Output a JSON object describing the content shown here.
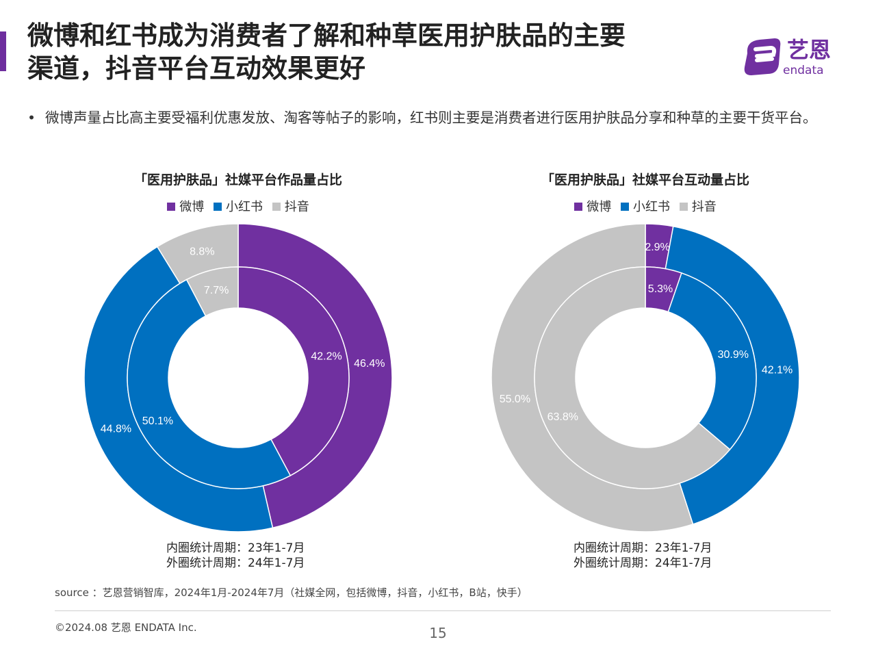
{
  "title_lines": [
    "微博和红书成为消费者了解和种草医用护肤品的主要",
    "渠道，抖音平台互动效果更好"
  ],
  "logo": {
    "cn": "艺恩",
    "en": "endata"
  },
  "bullet": "微博声量占比高主要受福利优惠发放、淘客等帖子的影响，红书则主要是消费者进行医用护肤品分享和种草的主要干货平台。",
  "colors": {
    "weibo": "#7030a0",
    "xiaohongshu": "#0070c0",
    "douyin": "#c4c4c4",
    "accent": "#6e2e9e"
  },
  "chart_data": [
    {
      "type": "donut",
      "title": "「医用护肤品」社媒平台作品量占比",
      "legend": [
        "微博",
        "小红书",
        "抖音"
      ],
      "legend_position": "top",
      "inner_ring": {
        "label": "内圈统计周期：23年1-7月",
        "values": [
          42.2,
          50.1,
          7.7
        ],
        "labels": [
          "42.2%",
          "50.1%",
          "7.7%"
        ]
      },
      "outer_ring": {
        "label": "外圈统计周期：24年1-7月",
        "values": [
          46.4,
          44.8,
          8.8
        ],
        "labels": [
          "46.4%",
          "44.8%",
          "8.8%"
        ]
      }
    },
    {
      "type": "donut",
      "title": "「医用护肤品」社媒平台互动量占比",
      "legend": [
        "微博",
        "小红书",
        "抖音"
      ],
      "legend_position": "top",
      "inner_ring": {
        "label": "内圈统计周期：23年1-7月",
        "values": [
          5.3,
          30.9,
          63.8
        ],
        "labels": [
          "5.3%",
          "30.9%",
          "63.8%"
        ]
      },
      "outer_ring": {
        "label": "外圈统计周期：24年1-7月",
        "values": [
          2.9,
          42.1,
          55.0
        ],
        "labels": [
          "2.9%",
          "42.1%",
          "55.0%"
        ]
      }
    }
  ],
  "source": "source ：艺恩营销智库，2024年1月-2024年7月（社媒全网，包括微博，抖音，小红书，B站，快手）",
  "copyright": "©2024.08  艺恩 ENDATA Inc.",
  "page_number": "15"
}
